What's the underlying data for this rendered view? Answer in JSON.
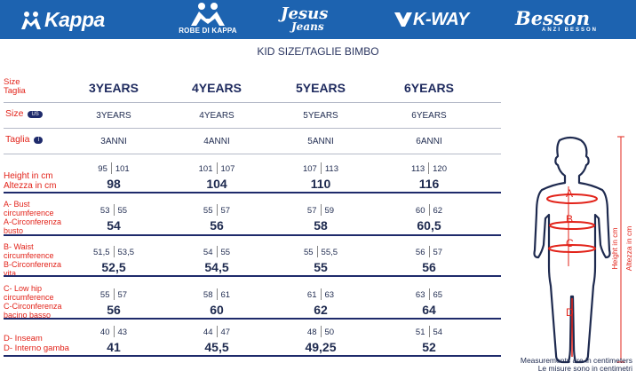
{
  "brands": {
    "kappa": "Kappa",
    "robe": "ROBE DI KAPPA",
    "jesus_top": "Jesus",
    "jesus_bottom": "Jeans",
    "kway": "K-WAY",
    "besson": "Besson",
    "besson_sub": "ANZI BESSON"
  },
  "title": "KID SIZE/TAGLIE BIMBO",
  "labels": {
    "size_head_1": "Size",
    "size_head_2": "Taglia",
    "size_us": "Size",
    "pill_us": "US",
    "taglia": "Taglia",
    "pill_i": "I",
    "height_1": "Height in cm",
    "height_2": "Altezza in cm",
    "bust_1": "A- Bust",
    "bust_2": "circumference",
    "bust_3": "A-Circonferenza",
    "bust_4": "busto",
    "waist_1": "B- Waist",
    "waist_2": "circumference",
    "waist_3": "B-Circonferenza",
    "waist_4": "vita",
    "hip_1": "C- Low hip",
    "hip_2": "circumference",
    "hip_3": "C-Circonferenza",
    "hip_4": "bacino basso",
    "inseam_1": "D- Inseam",
    "inseam_2": "D- Interno gamba"
  },
  "columns": [
    {
      "head": "3YEARS",
      "us": "3YEARS",
      "it": "3ANNI",
      "height_a": "95",
      "height_b": "101",
      "height": "98",
      "bust_a": "53",
      "bust_b": "55",
      "bust": "54",
      "waist_a": "51,5",
      "waist_b": "53,5",
      "waist": "52,5",
      "hip_a": "55",
      "hip_b": "57",
      "hip": "56",
      "inseam_a": "40",
      "inseam_b": "43",
      "inseam": "41"
    },
    {
      "head": "4YEARS",
      "us": "4YEARS",
      "it": "4ANNI",
      "height_a": "101",
      "height_b": "107",
      "height": "104",
      "bust_a": "55",
      "bust_b": "57",
      "bust": "56",
      "waist_a": "54",
      "waist_b": "55",
      "waist": "54,5",
      "hip_a": "58",
      "hip_b": "61",
      "hip": "60",
      "inseam_a": "44",
      "inseam_b": "47",
      "inseam": "45,5"
    },
    {
      "head": "5YEARS",
      "us": "5YEARS",
      "it": "5ANNI",
      "height_a": "107",
      "height_b": "113",
      "height": "110",
      "bust_a": "57",
      "bust_b": "59",
      "bust": "58",
      "waist_a": "55",
      "waist_b": "55,5",
      "waist": "55",
      "hip_a": "61",
      "hip_b": "63",
      "hip": "62",
      "inseam_a": "48",
      "inseam_b": "50",
      "inseam": "49,25"
    },
    {
      "head": "6YEARS",
      "us": "6YEARS",
      "it": "6ANNI",
      "height_a": "113",
      "height_b": "120",
      "height": "116",
      "bust_a": "60",
      "bust_b": "62",
      "bust": "60,5",
      "waist_a": "56",
      "waist_b": "57",
      "waist": "56",
      "hip_a": "63",
      "hip_b": "65",
      "hip": "64",
      "inseam_a": "51",
      "inseam_b": "54",
      "inseam": "52"
    }
  ],
  "figure": {
    "a": "A",
    "b": "B",
    "c": "C",
    "d": "D",
    "height_en": "Height in cm",
    "height_it": "Altezza in cm"
  },
  "footer": {
    "line1": "Measurements are in centimeters",
    "line2": "Le misure sono in centimetri"
  },
  "colors": {
    "brand_bar": "#1d63b0",
    "label_red": "#e2231a",
    "navy": "#1e2a5e"
  }
}
